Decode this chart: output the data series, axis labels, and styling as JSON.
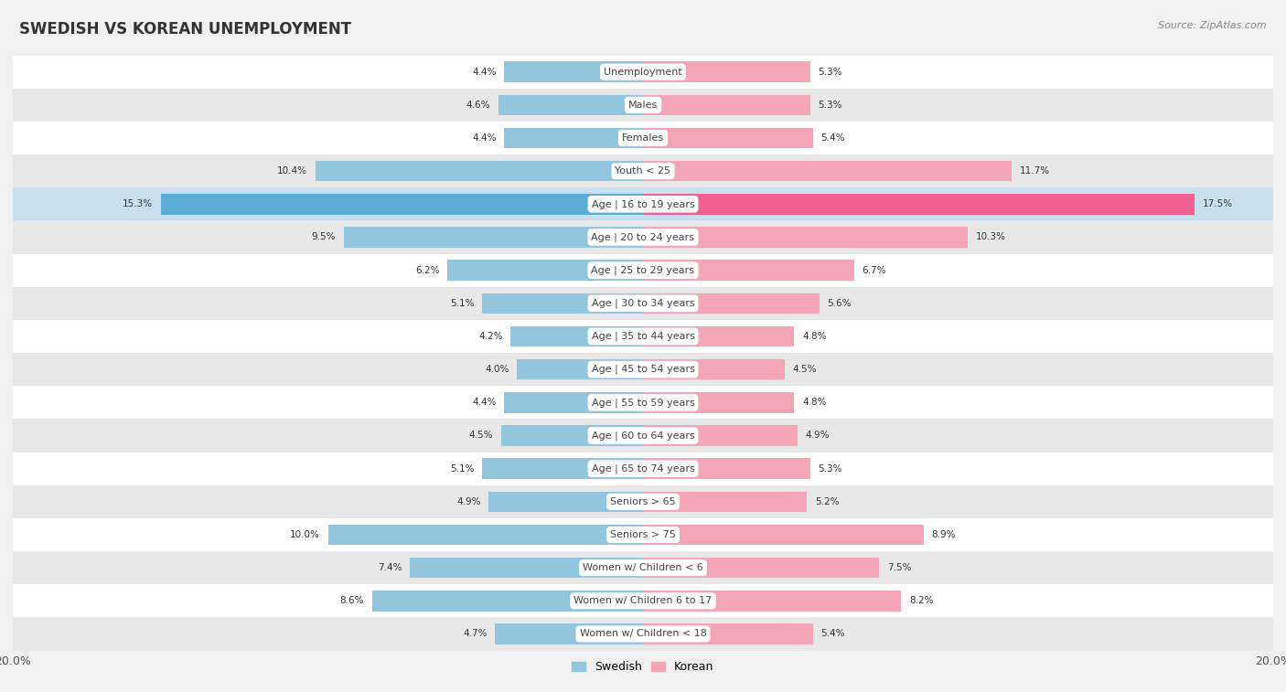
{
  "title": "SWEDISH VS KOREAN UNEMPLOYMENT",
  "source": "Source: ZipAtlas.com",
  "categories": [
    "Unemployment",
    "Males",
    "Females",
    "Youth < 25",
    "Age | 16 to 19 years",
    "Age | 20 to 24 years",
    "Age | 25 to 29 years",
    "Age | 30 to 34 years",
    "Age | 35 to 44 years",
    "Age | 45 to 54 years",
    "Age | 55 to 59 years",
    "Age | 60 to 64 years",
    "Age | 65 to 74 years",
    "Seniors > 65",
    "Seniors > 75",
    "Women w/ Children < 6",
    "Women w/ Children 6 to 17",
    "Women w/ Children < 18"
  ],
  "swedish": [
    4.4,
    4.6,
    4.4,
    10.4,
    15.3,
    9.5,
    6.2,
    5.1,
    4.2,
    4.0,
    4.4,
    4.5,
    5.1,
    4.9,
    10.0,
    7.4,
    8.6,
    4.7
  ],
  "korean": [
    5.3,
    5.3,
    5.4,
    11.7,
    17.5,
    10.3,
    6.7,
    5.6,
    4.8,
    4.5,
    4.8,
    4.9,
    5.3,
    5.2,
    8.9,
    7.5,
    8.2,
    5.4
  ],
  "swedish_color": "#92c5de",
  "korean_color": "#f4a6b8",
  "highlight_swedish_color": "#5bacd4",
  "highlight_korean_color": "#f06090",
  "highlight_row": 4,
  "bg_color": "#f0f0f0",
  "row_bg_white": "#ffffff",
  "row_bg_light": "#e8e8e8",
  "highlight_bg": "#c8dff0",
  "axis_limit": 20.0,
  "legend_swedish": "Swedish",
  "legend_korean": "Korean",
  "label_box_color": "#ffffff"
}
